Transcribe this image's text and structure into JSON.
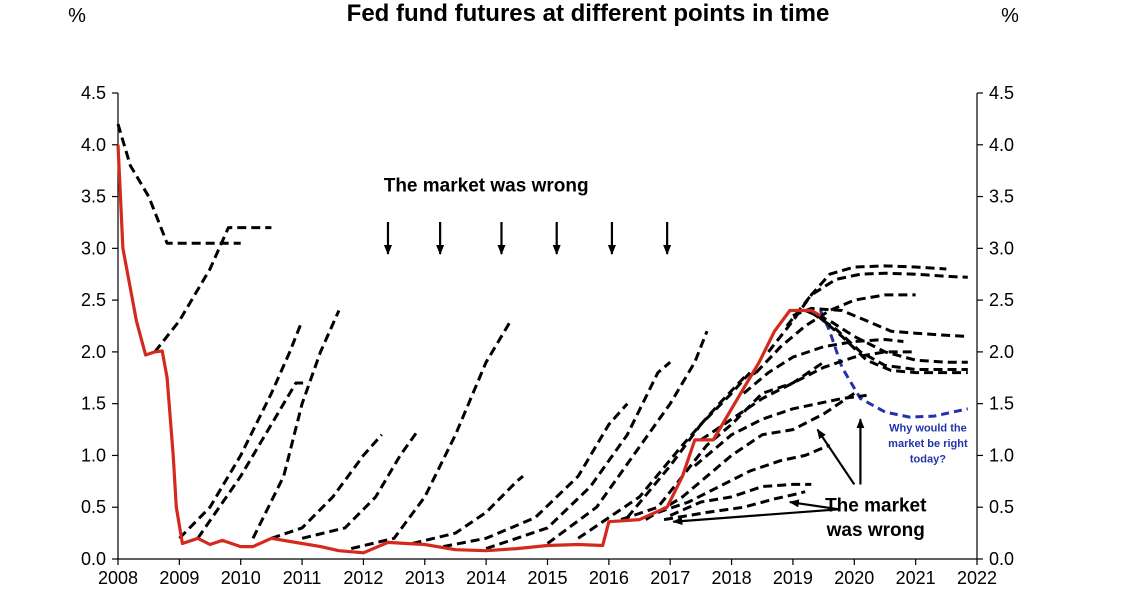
{
  "chart_data": {
    "type": "line",
    "title": "Fed fund futures at different points in time",
    "ylabel_left": "%",
    "ylabel_right": "%",
    "xlim": [
      2008,
      2022
    ],
    "ylim": [
      0,
      4.5
    ],
    "x_ticks": [
      "2008",
      "2009",
      "2010",
      "2011",
      "2012",
      "2013",
      "2014",
      "2015",
      "2016",
      "2017",
      "2018",
      "2019",
      "2020",
      "2021",
      "2022"
    ],
    "y_ticks": [
      "0.0",
      "0.5",
      "1.0",
      "1.5",
      "2.0",
      "2.5",
      "3.0",
      "3.5",
      "4.0",
      "4.5"
    ],
    "grid": false,
    "series": [
      {
        "style": "solid",
        "color": "#d42a1e",
        "points": [
          [
            2008.0,
            4.0
          ],
          [
            2008.08,
            3.0
          ],
          [
            2008.3,
            2.3
          ],
          [
            2008.45,
            1.97
          ],
          [
            2008.6,
            2.0
          ],
          [
            2008.72,
            2.01
          ],
          [
            2008.8,
            1.75
          ],
          [
            2008.9,
            1.0
          ],
          [
            2008.95,
            0.5
          ],
          [
            2009.05,
            0.15
          ],
          [
            2009.3,
            0.2
          ],
          [
            2009.5,
            0.14
          ],
          [
            2009.7,
            0.18
          ],
          [
            2010.0,
            0.12
          ],
          [
            2010.2,
            0.12
          ],
          [
            2010.5,
            0.2
          ],
          [
            2011.0,
            0.15
          ],
          [
            2011.3,
            0.12
          ],
          [
            2011.6,
            0.08
          ],
          [
            2012.0,
            0.06
          ],
          [
            2012.4,
            0.16
          ],
          [
            2012.7,
            0.15
          ],
          [
            2013.0,
            0.14
          ],
          [
            2013.5,
            0.09
          ],
          [
            2014.0,
            0.08
          ],
          [
            2014.5,
            0.1
          ],
          [
            2015.0,
            0.13
          ],
          [
            2015.5,
            0.14
          ],
          [
            2015.9,
            0.13
          ],
          [
            2016.0,
            0.36
          ],
          [
            2016.5,
            0.38
          ],
          [
            2016.95,
            0.5
          ],
          [
            2017.2,
            0.8
          ],
          [
            2017.4,
            1.15
          ],
          [
            2017.7,
            1.15
          ],
          [
            2017.95,
            1.4
          ],
          [
            2018.2,
            1.65
          ],
          [
            2018.45,
            1.9
          ],
          [
            2018.7,
            2.2
          ],
          [
            2018.95,
            2.4
          ],
          [
            2019.1,
            2.4
          ],
          [
            2019.3,
            2.4
          ],
          [
            2019.45,
            2.35
          ]
        ]
      },
      {
        "style": "dashed",
        "color": "#2233aa",
        "points": [
          [
            2019.45,
            2.4
          ],
          [
            2019.6,
            2.2
          ],
          [
            2019.8,
            1.85
          ],
          [
            2020.1,
            1.55
          ],
          [
            2020.5,
            1.42
          ],
          [
            2020.9,
            1.37
          ],
          [
            2021.3,
            1.38
          ],
          [
            2021.85,
            1.45
          ]
        ]
      },
      {
        "style": "dashed",
        "color": "#000000",
        "points": [
          [
            2008.0,
            4.2
          ],
          [
            2008.2,
            3.8
          ],
          [
            2008.5,
            3.5
          ],
          [
            2008.8,
            3.05
          ],
          [
            2009.0,
            3.05
          ],
          [
            2010.0,
            3.05
          ]
        ]
      },
      {
        "style": "dashed",
        "color": "#000000",
        "points": [
          [
            2008.6,
            2.0
          ],
          [
            2009.0,
            2.3
          ],
          [
            2009.5,
            2.8
          ],
          [
            2009.8,
            3.2
          ],
          [
            2010.5,
            3.2
          ]
        ]
      },
      {
        "style": "dashed",
        "color": "#000000",
        "points": [
          [
            2009.0,
            0.2
          ],
          [
            2009.5,
            0.5
          ],
          [
            2010.0,
            1.0
          ],
          [
            2010.5,
            1.6
          ],
          [
            2010.8,
            2.0
          ],
          [
            2011.0,
            2.3
          ]
        ]
      },
      {
        "style": "dashed",
        "color": "#000000",
        "points": [
          [
            2009.3,
            0.2
          ],
          [
            2010.0,
            0.8
          ],
          [
            2010.5,
            1.3
          ],
          [
            2010.9,
            1.7
          ],
          [
            2011.1,
            1.7
          ]
        ]
      },
      {
        "style": "dashed",
        "color": "#000000",
        "points": [
          [
            2010.2,
            0.2
          ],
          [
            2010.7,
            0.8
          ],
          [
            2011.0,
            1.5
          ],
          [
            2011.3,
            2.0
          ],
          [
            2011.6,
            2.4
          ]
        ]
      },
      {
        "style": "dashed",
        "color": "#000000",
        "points": [
          [
            2010.5,
            0.2
          ],
          [
            2011.0,
            0.3
          ],
          [
            2011.5,
            0.6
          ],
          [
            2012.0,
            1.0
          ],
          [
            2012.3,
            1.2
          ]
        ]
      },
      {
        "style": "dashed",
        "color": "#000000",
        "points": [
          [
            2011.0,
            0.2
          ],
          [
            2011.7,
            0.3
          ],
          [
            2012.2,
            0.6
          ],
          [
            2012.6,
            1.0
          ],
          [
            2012.9,
            1.25
          ]
        ]
      },
      {
        "style": "dashed",
        "color": "#000000",
        "points": [
          [
            2011.8,
            0.1
          ],
          [
            2012.5,
            0.2
          ],
          [
            2013.0,
            0.6
          ],
          [
            2013.5,
            1.2
          ],
          [
            2014.0,
            1.9
          ],
          [
            2014.4,
            2.3
          ]
        ]
      },
      {
        "style": "dashed",
        "color": "#000000",
        "points": [
          [
            2012.8,
            0.15
          ],
          [
            2013.5,
            0.25
          ],
          [
            2014.0,
            0.45
          ],
          [
            2014.5,
            0.75
          ],
          [
            2014.6,
            0.8
          ]
        ]
      },
      {
        "style": "dashed",
        "color": "#000000",
        "points": [
          [
            2013.3,
            0.12
          ],
          [
            2014.0,
            0.2
          ],
          [
            2014.8,
            0.4
          ],
          [
            2015.5,
            0.8
          ],
          [
            2016.0,
            1.3
          ],
          [
            2016.3,
            1.5
          ]
        ]
      },
      {
        "style": "dashed",
        "color": "#000000",
        "points": [
          [
            2014.0,
            0.1
          ],
          [
            2015.0,
            0.3
          ],
          [
            2015.7,
            0.7
          ],
          [
            2016.3,
            1.2
          ],
          [
            2016.8,
            1.8
          ],
          [
            2017.0,
            1.9
          ]
        ]
      },
      {
        "style": "dashed",
        "color": "#000000",
        "points": [
          [
            2015.0,
            0.15
          ],
          [
            2015.8,
            0.5
          ],
          [
            2016.4,
            1.0
          ],
          [
            2017.0,
            1.5
          ],
          [
            2017.4,
            1.9
          ],
          [
            2017.6,
            2.2
          ]
        ]
      },
      {
        "style": "dashed",
        "color": "#000000",
        "points": [
          [
            2015.5,
            0.2
          ],
          [
            2016.5,
            0.6
          ],
          [
            2017.2,
            1.1
          ],
          [
            2017.8,
            1.5
          ],
          [
            2018.2,
            1.75
          ],
          [
            2018.4,
            1.8
          ]
        ]
      },
      {
        "style": "dashed",
        "color": "#000000",
        "points": [
          [
            2016.3,
            0.4
          ],
          [
            2017.0,
            0.9
          ],
          [
            2017.5,
            1.3
          ],
          [
            2018.0,
            1.6
          ],
          [
            2018.3,
            1.8
          ]
        ]
      },
      {
        "style": "dashed",
        "color": "#000000",
        "points": [
          [
            2016.2,
            0.38
          ],
          [
            2016.8,
            0.5
          ],
          [
            2017.2,
            0.8
          ],
          [
            2017.6,
            1.1
          ],
          [
            2018.0,
            1.3
          ],
          [
            2018.5,
            1.6
          ],
          [
            2019.0,
            1.7
          ],
          [
            2019.5,
            1.9
          ]
        ]
      },
      {
        "style": "dashed",
        "color": "#000000",
        "points": [
          [
            2016.6,
            0.38
          ],
          [
            2017.2,
            0.6
          ],
          [
            2017.6,
            0.8
          ],
          [
            2018.0,
            1.0
          ],
          [
            2018.5,
            1.2
          ],
          [
            2019.0,
            1.25
          ],
          [
            2019.5,
            1.4
          ],
          [
            2020.0,
            1.6
          ]
        ]
      },
      {
        "style": "dashed",
        "color": "#000000",
        "points": [
          [
            2016.8,
            0.45
          ],
          [
            2017.3,
            0.55
          ],
          [
            2017.8,
            0.7
          ],
          [
            2018.3,
            0.85
          ],
          [
            2018.8,
            0.95
          ],
          [
            2019.2,
            1.0
          ],
          [
            2019.6,
            1.1
          ]
        ]
      },
      {
        "style": "dashed",
        "color": "#000000",
        "points": [
          [
            2017.0,
            0.42
          ],
          [
            2017.5,
            0.55
          ],
          [
            2018.0,
            0.6
          ],
          [
            2018.5,
            0.7
          ],
          [
            2019.0,
            0.72
          ],
          [
            2019.3,
            0.72
          ]
        ]
      },
      {
        "style": "dashed",
        "color": "#000000",
        "points": [
          [
            2016.9,
            0.38
          ],
          [
            2017.6,
            0.45
          ],
          [
            2018.2,
            0.5
          ],
          [
            2018.7,
            0.58
          ],
          [
            2019.0,
            0.62
          ],
          [
            2019.2,
            0.65
          ]
        ]
      },
      {
        "style": "dashed",
        "color": "#000000",
        "points": [
          [
            2017.4,
            0.9
          ],
          [
            2018.0,
            1.2
          ],
          [
            2018.5,
            1.35
          ],
          [
            2019.0,
            1.45
          ],
          [
            2019.4,
            1.5
          ],
          [
            2019.8,
            1.55
          ],
          [
            2020.2,
            1.58
          ]
        ]
      },
      {
        "style": "dashed",
        "color": "#000000",
        "points": [
          [
            2017.5,
            1.15
          ],
          [
            2018.0,
            1.35
          ],
          [
            2018.5,
            1.55
          ],
          [
            2019.0,
            1.7
          ],
          [
            2019.5,
            1.85
          ],
          [
            2020.0,
            1.95
          ],
          [
            2020.5,
            2.0
          ],
          [
            2021.0,
            2.0
          ]
        ]
      },
      {
        "style": "dashed",
        "color": "#000000",
        "points": [
          [
            2018.2,
            1.6
          ],
          [
            2018.6,
            1.8
          ],
          [
            2019.0,
            1.95
          ],
          [
            2019.5,
            2.05
          ],
          [
            2020.0,
            2.1
          ],
          [
            2020.5,
            2.12
          ],
          [
            2020.8,
            2.1
          ]
        ]
      },
      {
        "style": "dashed",
        "color": "#000000",
        "points": [
          [
            2018.4,
            1.8
          ],
          [
            2018.8,
            2.05
          ],
          [
            2019.2,
            2.25
          ],
          [
            2019.6,
            2.4
          ],
          [
            2020.0,
            2.5
          ],
          [
            2020.5,
            2.55
          ],
          [
            2021.0,
            2.55
          ]
        ]
      },
      {
        "style": "dashed",
        "color": "#000000",
        "points": [
          [
            2018.6,
            2.0
          ],
          [
            2019.0,
            2.3
          ],
          [
            2019.3,
            2.55
          ],
          [
            2019.6,
            2.75
          ],
          [
            2020.0,
            2.82
          ],
          [
            2020.5,
            2.83
          ],
          [
            2021.0,
            2.82
          ],
          [
            2021.5,
            2.8
          ]
        ]
      },
      {
        "style": "dashed",
        "color": "#000000",
        "points": [
          [
            2018.9,
            2.25
          ],
          [
            2019.3,
            2.55
          ],
          [
            2019.7,
            2.7
          ],
          [
            2020.1,
            2.75
          ],
          [
            2020.5,
            2.76
          ],
          [
            2021.0,
            2.75
          ],
          [
            2021.5,
            2.73
          ],
          [
            2021.85,
            2.72
          ]
        ]
      },
      {
        "style": "dashed",
        "color": "#000000",
        "points": [
          [
            2019.0,
            2.35
          ],
          [
            2019.3,
            2.42
          ],
          [
            2019.8,
            2.4
          ],
          [
            2020.2,
            2.3
          ],
          [
            2020.6,
            2.2
          ],
          [
            2021.0,
            2.18
          ],
          [
            2021.5,
            2.16
          ],
          [
            2021.85,
            2.15
          ]
        ]
      },
      {
        "style": "dashed",
        "color": "#000000",
        "points": [
          [
            2019.2,
            2.4
          ],
          [
            2019.6,
            2.3
          ],
          [
            2020.0,
            2.15
          ],
          [
            2020.5,
            2.0
          ],
          [
            2021.0,
            1.92
          ],
          [
            2021.5,
            1.9
          ],
          [
            2021.85,
            1.9
          ]
        ]
      },
      {
        "style": "dashed",
        "color": "#000000",
        "points": [
          [
            2019.3,
            2.38
          ],
          [
            2019.7,
            2.22
          ],
          [
            2020.1,
            2.0
          ],
          [
            2020.5,
            1.87
          ],
          [
            2021.0,
            1.83
          ],
          [
            2021.5,
            1.83
          ],
          [
            2021.85,
            1.83
          ]
        ]
      },
      {
        "style": "dashed",
        "color": "#000000",
        "points": [
          [
            2019.4,
            2.35
          ],
          [
            2019.8,
            2.15
          ],
          [
            2020.2,
            1.92
          ],
          [
            2020.6,
            1.82
          ],
          [
            2021.0,
            1.8
          ],
          [
            2021.85,
            1.8
          ]
        ]
      }
    ],
    "annotations": [
      {
        "text": "The market was wrong",
        "x": 2014.0,
        "y": 3.55
      },
      {
        "text": "Why would the",
        "x": 2021.2,
        "y": 1.23
      },
      {
        "text": "market be right",
        "x": 2021.2,
        "y": 1.08
      },
      {
        "text": "today?",
        "x": 2021.2,
        "y": 0.93
      },
      {
        "text": "The market",
        "x": 2020.35,
        "y": 0.46
      },
      {
        "text": "was wrong",
        "x": 2020.35,
        "y": 0.22
      }
    ],
    "down_arrows_x": [
      2012.4,
      2013.25,
      2014.25,
      2015.15,
      2016.05,
      2016.95
    ],
    "pointer_arrows": [
      {
        "from": [
          2019.75,
          0.48
        ],
        "to": [
          2017.05,
          0.36
        ]
      },
      {
        "from": [
          2019.75,
          0.48
        ],
        "to": [
          2018.95,
          0.55
        ]
      },
      {
        "from": [
          2020.0,
          0.72
        ],
        "to": [
          2019.4,
          1.25
        ]
      },
      {
        "from": [
          2020.1,
          0.72
        ],
        "to": [
          2020.1,
          1.35
        ]
      }
    ]
  }
}
